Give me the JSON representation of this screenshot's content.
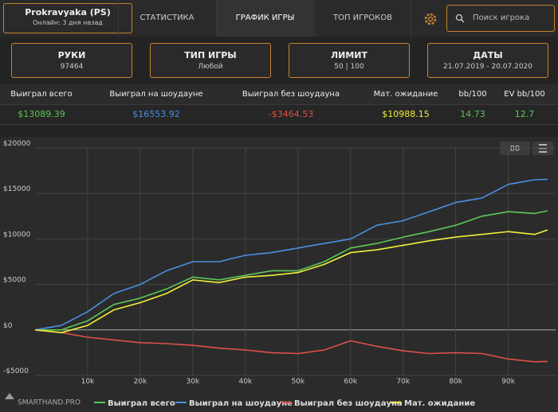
{
  "header": {
    "player_name": "Prokravyaka (PS)",
    "status": "Онлайн: 3 дня назад",
    "tabs": [
      "СТАТИСТИКА",
      "ГРАФИК ИГРЫ",
      "ТОП ИГРОКОВ"
    ],
    "search_placeholder": "Поиск игрока"
  },
  "filters": [
    {
      "label": "РУКИ",
      "value": "97464"
    },
    {
      "label": "ТИП ИГРЫ",
      "value": "Любой"
    },
    {
      "label": "ЛИМИТ",
      "value": "50 | 100"
    },
    {
      "label": "ДАТЫ",
      "value": "21.07.2019 - 20.07.2020"
    }
  ],
  "stats": {
    "headers": [
      "Выиграл всего",
      "Выиграл на шоудауне",
      "Выиграл без шоудауна",
      "Мат. ожидание",
      "bb/100",
      "EV bb/100"
    ],
    "values": [
      "$13089.39",
      "$16553.92",
      "-$3464.53",
      "$10988.15",
      "14.73",
      "12.7"
    ]
  },
  "chart_toolbar": {
    "unit_button": "BB"
  },
  "watermark": "SMARTHAND.PRO",
  "chart_data": {
    "type": "line",
    "x": [
      0,
      5000,
      10000,
      15000,
      20000,
      25000,
      30000,
      35000,
      40000,
      45000,
      50000,
      55000,
      60000,
      65000,
      70000,
      75000,
      80000,
      85000,
      90000,
      95000,
      97464
    ],
    "xlim": [
      0,
      99000
    ],
    "ylim": [
      -5000,
      20000
    ],
    "xticks": [
      {
        "value": 10000,
        "label": "10k"
      },
      {
        "value": 20000,
        "label": "20k"
      },
      {
        "value": 30000,
        "label": "30k"
      },
      {
        "value": 40000,
        "label": "40k"
      },
      {
        "value": 50000,
        "label": "50k"
      },
      {
        "value": 60000,
        "label": "60k"
      },
      {
        "value": 70000,
        "label": "70k"
      },
      {
        "value": 80000,
        "label": "80k"
      },
      {
        "value": 90000,
        "label": "90k"
      }
    ],
    "yticks": [
      {
        "value": -5000,
        "label": "-$5000"
      },
      {
        "value": 0,
        "label": "$0"
      },
      {
        "value": 5000,
        "label": "$5000"
      },
      {
        "value": 10000,
        "label": "$10000"
      },
      {
        "value": 15000,
        "label": "$15000"
      },
      {
        "value": 20000,
        "label": "$20000"
      }
    ],
    "grid": true,
    "series": [
      {
        "name": "Выиграл всего",
        "color": "#5cc85a",
        "values": [
          0,
          0,
          1000,
          2800,
          3500,
          4500,
          5800,
          5500,
          6000,
          6500,
          6500,
          7500,
          9000,
          9500,
          10200,
          10800,
          11500,
          12500,
          13000,
          12800,
          13089
        ]
      },
      {
        "name": "Выиграл на шоудауне",
        "color": "#4a90e2",
        "values": [
          0,
          500,
          2000,
          4000,
          5000,
          6500,
          7500,
          7500,
          8200,
          8500,
          9000,
          9500,
          10000,
          11500,
          12000,
          13000,
          14000,
          14500,
          16000,
          16500,
          16554
        ]
      },
      {
        "name": "Выиграл без шоудауна",
        "color": "#e0504a",
        "values": [
          0,
          -300,
          -800,
          -1100,
          -1400,
          -1500,
          -1700,
          -2000,
          -2200,
          -2500,
          -2600,
          -2200,
          -1200,
          -1800,
          -2300,
          -2600,
          -2500,
          -2600,
          -3200,
          -3500,
          -3465
        ]
      },
      {
        "name": "Мат. ожидание",
        "color": "#f0f03a",
        "values": [
          0,
          -300,
          500,
          2200,
          3000,
          4000,
          5500,
          5200,
          5800,
          6000,
          6300,
          7200,
          8500,
          8800,
          9300,
          9800,
          10200,
          10500,
          10800,
          10500,
          10988
        ]
      }
    ]
  }
}
